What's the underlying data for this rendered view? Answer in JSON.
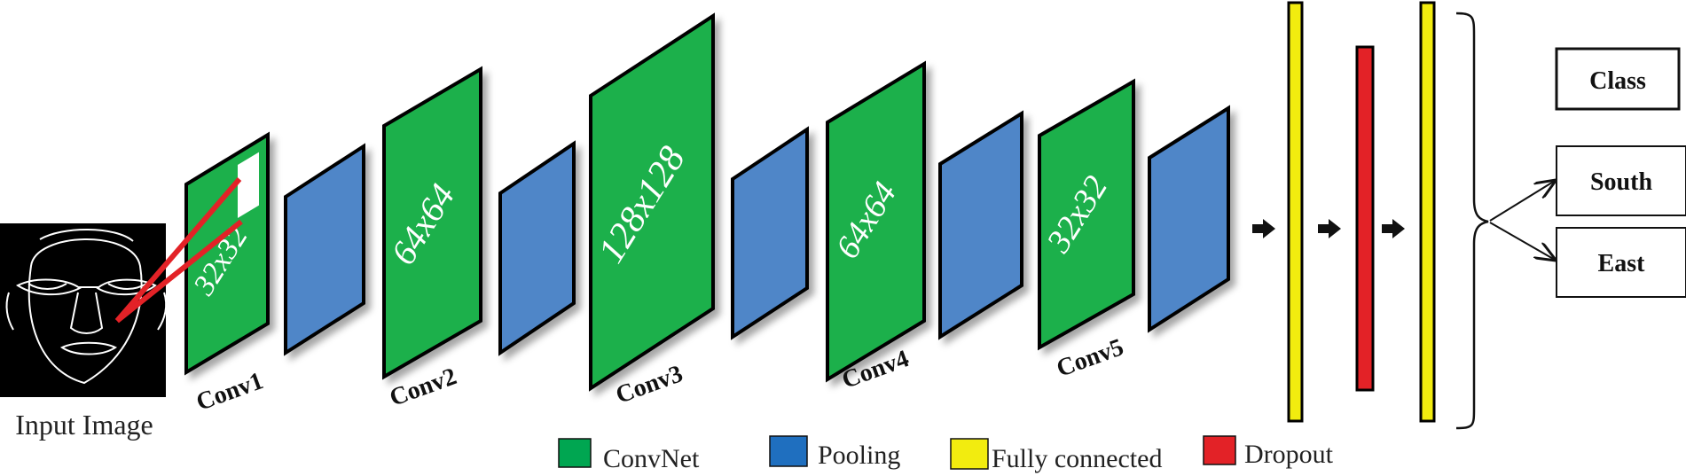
{
  "input": {
    "caption": "Input Image"
  },
  "layers": [
    {
      "block": "32x32",
      "name": "Conv1"
    },
    {
      "block": "64x64",
      "name": "Conv2"
    },
    {
      "block": "128x128",
      "name": "Conv3"
    },
    {
      "block": "64x64",
      "name": "Conv4"
    },
    {
      "block": "32x32",
      "name": "Conv5"
    }
  ],
  "outputs": {
    "class_header": "Class",
    "south": "South",
    "east": "East"
  },
  "legend": [
    {
      "label": "ConvNet",
      "color": "#00a651"
    },
    {
      "label": "Pooling",
      "color": "#1f6fbf"
    },
    {
      "label": "Fully connected",
      "color": "#f2ec0f"
    },
    {
      "label": "Dropout",
      "color": "#e32227"
    }
  ],
  "colors": {
    "convnet": "#1fb04b",
    "pooling": "#4f86c8",
    "fully_connected": "#f2ec0f",
    "dropout": "#e32227",
    "highlight": "#e32227"
  },
  "icons": [
    "right-arrow-icon",
    "brace-icon"
  ]
}
